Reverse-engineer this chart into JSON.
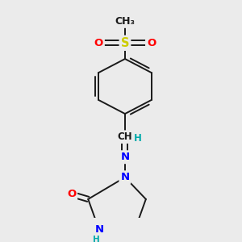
{
  "background_color": "#ebebeb",
  "bond_color": "#1a1a1a",
  "bond_width": 1.4,
  "atom_colors": {
    "N": "#0000ff",
    "O": "#ff0000",
    "S": "#cccc00",
    "C": "#1a1a1a",
    "H": "#00aaaa"
  },
  "font_size": 9.5,
  "fig_width": 3.0,
  "fig_height": 3.0,
  "dpi": 100
}
